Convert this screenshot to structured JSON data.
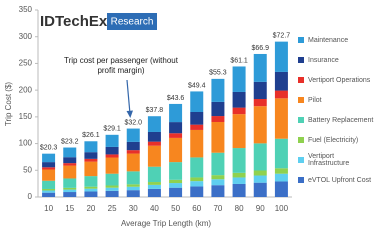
{
  "chart_data": {
    "type": "stacked_bar",
    "brand": "IDTechEx",
    "brand_tag": "Research",
    "annotation": "Trip cost per passenger (without profit margin)",
    "x_label": "Average Trip Length (km)",
    "y_label": "Trip Cost ($)",
    "categories": [
      "10",
      "15",
      "20",
      "25",
      "30",
      "40",
      "50",
      "60",
      "70",
      "80",
      "90",
      "100"
    ],
    "bar_labels": [
      "$20.3",
      "$23.2",
      "$26.1",
      "$29.1",
      "$32.0",
      "$37.8",
      "$43.6",
      "$49.4",
      "$55.3",
      "$61.1",
      "$66.9",
      "$72.7"
    ],
    "ylim": [
      0,
      350
    ],
    "yticks": [
      0,
      50,
      100,
      150,
      200,
      250,
      300,
      350
    ],
    "series": [
      {
        "name": "eVTOL Upfront Cost",
        "color": "#3b6fc7",
        "values": [
          8.1,
          9.3,
          10.4,
          11.6,
          12.8,
          15.1,
          17.4,
          19.8,
          22.1,
          24.4,
          26.8,
          29.1
        ]
      },
      {
        "name": "Vertiport Infrastructure",
        "color": "#5ecff0",
        "values": [
          4.1,
          4.6,
          5.2,
          5.8,
          6.4,
          7.6,
          8.7,
          9.9,
          11.1,
          12.2,
          13.4,
          14.5
        ]
      },
      {
        "name": "Fuel (Electricity)",
        "color": "#8fd14f",
        "values": [
          2.8,
          3.2,
          3.7,
          4.1,
          4.5,
          5.3,
          6.1,
          6.9,
          7.7,
          8.6,
          9.4,
          10.2
        ]
      },
      {
        "name": "Battery Replacement",
        "color": "#4fd1b5",
        "values": [
          15.4,
          17.6,
          19.8,
          22.1,
          24.3,
          28.7,
          33.1,
          37.5,
          42.0,
          46.4,
          50.8,
          55.3
        ]
      },
      {
        "name": "Pilot",
        "color": "#f7861f",
        "values": [
          21.1,
          24.1,
          27.1,
          30.3,
          33.3,
          39.3,
          45.3,
          51.4,
          57.5,
          63.5,
          69.6,
          75.6
        ]
      },
      {
        "name": "Vertiport Operations",
        "color": "#e8302a",
        "values": [
          4.1,
          4.6,
          5.2,
          5.8,
          6.4,
          7.6,
          8.7,
          9.9,
          11.1,
          12.2,
          13.4,
          14.5
        ]
      },
      {
        "name": "Insurance",
        "color": "#1f3f8f",
        "values": [
          9.7,
          11.1,
          12.5,
          14.0,
          15.4,
          18.1,
          20.9,
          23.7,
          26.5,
          29.3,
          32.1,
          34.9
        ]
      },
      {
        "name": "Maintenance",
        "color": "#2e9bd8",
        "values": [
          15.8,
          18.1,
          20.4,
          22.7,
          25.0,
          29.5,
          34.0,
          38.5,
          43.1,
          47.7,
          52.2,
          56.7
        ]
      }
    ]
  }
}
